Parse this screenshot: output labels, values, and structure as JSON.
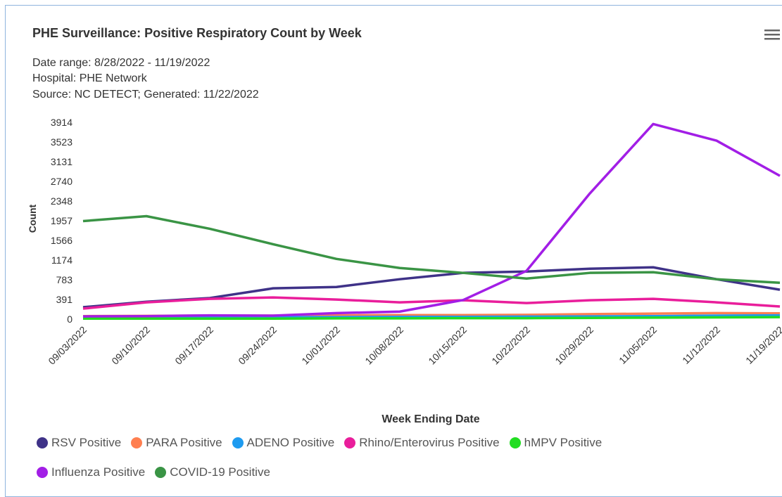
{
  "chart_data": {
    "type": "line",
    "title": "PHE Surveillance: Positive Respiratory Count by Week",
    "subtitle": [
      "Date range: 8/28/2022 - 11/19/2022",
      "Hospital: PHE Network",
      "Source: NC DETECT; Generated: 11/22/2022"
    ],
    "x_label": "Week Ending Date",
    "y_label": "Count",
    "categories": [
      "09/03/2022",
      "09/10/2022",
      "09/17/2022",
      "09/24/2022",
      "10/01/2022",
      "10/08/2022",
      "10/15/2022",
      "10/22/2022",
      "10/29/2022",
      "11/05/2022",
      "11/12/2022",
      "11/19/2022"
    ],
    "ylim": [
      0,
      3914
    ],
    "yticks": [
      0,
      391,
      783,
      1174,
      1566,
      1957,
      2348,
      2740,
      3131,
      3523,
      3914
    ],
    "grid": false,
    "legend": "bottom",
    "series": [
      {
        "name": "RSV Positive",
        "color": "#3f3288",
        "values": [
          237,
          346,
          420,
          613,
          640,
          794,
          920,
          947,
          1003,
          1031,
          794,
          585
        ]
      },
      {
        "name": "PARA Positive",
        "color": "#ff7f50",
        "values": [
          60,
          65,
          70,
          70,
          75,
          80,
          80,
          85,
          100,
          110,
          120,
          115
        ]
      },
      {
        "name": "ADENO Positive",
        "color": "#1e9bf0",
        "values": [
          30,
          35,
          35,
          40,
          40,
          45,
          45,
          50,
          55,
          60,
          70,
          75
        ]
      },
      {
        "name": "Rhino/Enterovirus Positive",
        "color": "#e91e9b",
        "values": [
          209,
          334,
          404,
          432,
          390,
          334,
          376,
          320,
          376,
          404,
          334,
          251
        ]
      },
      {
        "name": "hMPV Positive",
        "color": "#22dd22",
        "values": [
          10,
          10,
          10,
          10,
          15,
          15,
          20,
          20,
          25,
          30,
          35,
          40
        ]
      },
      {
        "name": "Influenza Positive",
        "color": "#a21ee6",
        "values": [
          55,
          60,
          75,
          70,
          120,
          150,
          380,
          960,
          2500,
          3880,
          3550,
          2850
        ]
      },
      {
        "name": "COVID-19 Positive",
        "color": "#3a9445",
        "values": [
          1950,
          2048,
          1797,
          1490,
          1198,
          1017,
          920,
          808,
          920,
          933,
          794,
          724
        ]
      }
    ]
  }
}
